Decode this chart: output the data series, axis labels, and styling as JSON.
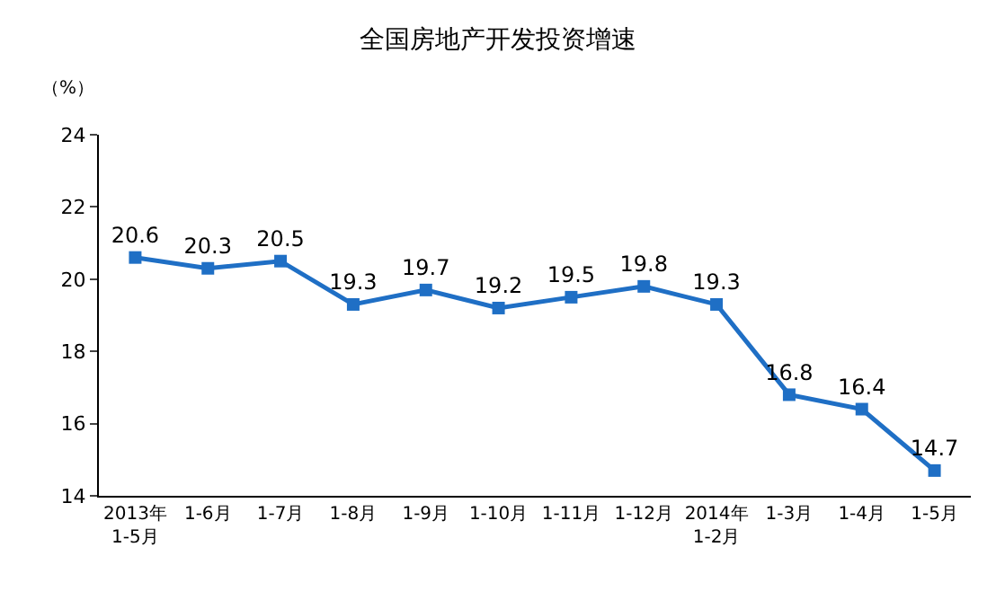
{
  "chart_data": {
    "type": "line",
    "title": "全国房地产开发投资增速",
    "ylabel": "（%）",
    "categories": [
      "2013年\n1-5月",
      "1-6月",
      "1-7月",
      "1-8月",
      "1-9月",
      "1-10月",
      "1-11月",
      "1-12月",
      "2014年\n1-2月",
      "1-3月",
      "1-4月",
      "1-5月"
    ],
    "series": [
      {
        "color": "#1f6fc5",
        "values": [
          20.6,
          20.3,
          20.5,
          19.3,
          19.7,
          19.2,
          19.5,
          19.8,
          19.3,
          16.8,
          16.4,
          14.7
        ]
      }
    ],
    "ylim": [
      14,
      24
    ],
    "yticks": [
      14,
      16,
      18,
      20,
      22,
      24
    ],
    "data_labels": true,
    "marker": "square",
    "legend": false
  }
}
